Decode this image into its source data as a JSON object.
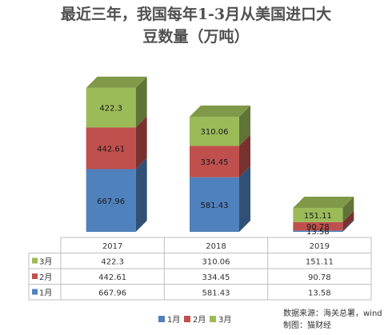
{
  "title_lines": [
    "最近三年，我国每年1-3月从美国进口大",
    "豆数量（万吨）"
  ],
  "source": "数据来源：海关总署，wind",
  "producer": "制图：猫财经",
  "colors": {
    "m1": "#4F81BD",
    "m2": "#C0504D",
    "m3": "#9BBB59"
  },
  "chart_data": {
    "type": "bar",
    "stacked": true,
    "three_d": true,
    "title": "最近三年，我国每年1-3月从美国进口大豆数量（万吨）",
    "categories": [
      "2017",
      "2018",
      "2019"
    ],
    "series": [
      {
        "name": "1月",
        "values": [
          667.96,
          581.43,
          13.58
        ],
        "labels": [
          "667.96",
          "581.43",
          "13.58"
        ]
      },
      {
        "name": "2月",
        "values": [
          442.61,
          334.45,
          90.78
        ],
        "labels": [
          "442.61",
          "334.45",
          "90.78"
        ]
      },
      {
        "name": "3月",
        "values": [
          422.3,
          310.06,
          151.11
        ],
        "labels": [
          "422.3",
          "310.06",
          "151.11"
        ]
      }
    ],
    "data_table": true,
    "legend_position": "bottom",
    "gridlines": false
  }
}
